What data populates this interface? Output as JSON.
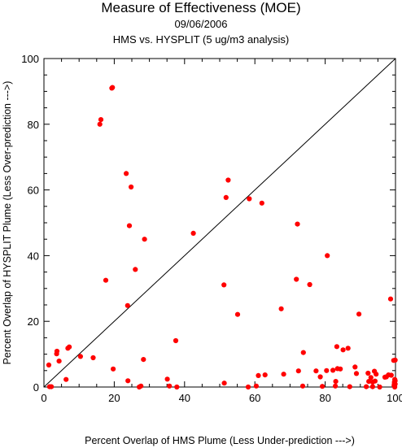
{
  "chart_data": {
    "type": "scatter",
    "title": "Measure of Effectiveness (MOE)",
    "subtitle_date": "09/06/2006",
    "subtitle_analysis": "HMS vs. HYSPLIT  (5 ug/m3 analysis)",
    "xlabel": "Percent Overlap of HMS Plume (Less Under-prediction --->)",
    "ylabel": "Percent Overlap of HYSPLIT Plume (Less Over-prediction --->)",
    "xlim": [
      0,
      100
    ],
    "ylim": [
      0,
      100
    ],
    "xticks": [
      0,
      20,
      40,
      60,
      80,
      100
    ],
    "yticks": [
      0,
      20,
      40,
      60,
      80,
      100
    ],
    "reference_line": "y = x (diagonal)",
    "marker_color": "#ff0000",
    "line_color": "#000000",
    "points": [
      [
        1.4,
        6.7
      ],
      [
        1.6,
        0.1
      ],
      [
        2.1,
        0.1
      ],
      [
        3.6,
        10.1
      ],
      [
        3.7,
        10.9
      ],
      [
        4.3,
        7.9
      ],
      [
        6.3,
        2.3
      ],
      [
        6.8,
        11.8
      ],
      [
        7.2,
        12.2
      ],
      [
        10.4,
        9.3
      ],
      [
        14.0,
        8.9
      ],
      [
        15.9,
        80.0
      ],
      [
        16.2,
        81.4
      ],
      [
        17.6,
        32.5
      ],
      [
        19.3,
        91.0
      ],
      [
        19.5,
        91.2
      ],
      [
        19.7,
        5.5
      ],
      [
        23.4,
        65.0
      ],
      [
        23.8,
        24.8
      ],
      [
        23.9,
        1.9
      ],
      [
        24.3,
        49.1
      ],
      [
        24.8,
        60.9
      ],
      [
        26.0,
        35.8
      ],
      [
        27.1,
        0.0
      ],
      [
        27.6,
        0.3
      ],
      [
        28.3,
        8.4
      ],
      [
        28.6,
        45.0
      ],
      [
        35.1,
        2.4
      ],
      [
        35.7,
        0.3
      ],
      [
        37.5,
        14.1
      ],
      [
        37.8,
        0.0
      ],
      [
        42.5,
        46.8
      ],
      [
        51.2,
        31.1
      ],
      [
        51.3,
        1.2
      ],
      [
        51.8,
        57.7
      ],
      [
        52.4,
        63.0
      ],
      [
        55.1,
        22.1
      ],
      [
        58.1,
        0.0
      ],
      [
        58.4,
        57.3
      ],
      [
        60.4,
        0.3
      ],
      [
        61.0,
        3.5
      ],
      [
        62.0,
        56.0
      ],
      [
        62.9,
        3.7
      ],
      [
        67.5,
        23.8
      ],
      [
        68.2,
        3.9
      ],
      [
        71.8,
        32.8
      ],
      [
        72.1,
        49.6
      ],
      [
        72.4,
        4.9
      ],
      [
        73.6,
        0.3
      ],
      [
        73.8,
        10.5
      ],
      [
        75.6,
        31.2
      ],
      [
        77.4,
        4.9
      ],
      [
        78.6,
        3.1
      ],
      [
        79.2,
        0.2
      ],
      [
        80.4,
        5.0
      ],
      [
        80.6,
        40.0
      ],
      [
        82.2,
        5.1
      ],
      [
        82.9,
        0.3
      ],
      [
        83.0,
        1.7
      ],
      [
        83.3,
        12.3
      ],
      [
        83.5,
        5.6
      ],
      [
        84.3,
        5.5
      ],
      [
        85.1,
        11.3
      ],
      [
        86.5,
        11.8
      ],
      [
        87.0,
        0.1
      ],
      [
        88.5,
        6.1
      ],
      [
        88.9,
        4.1
      ],
      [
        89.6,
        22.2
      ],
      [
        91.7,
        0.1
      ],
      [
        92.2,
        4.2
      ],
      [
        92.4,
        1.7
      ],
      [
        93.0,
        2.9
      ],
      [
        93.5,
        1.5
      ],
      [
        93.5,
        0.1
      ],
      [
        94.0,
        4.8
      ],
      [
        94.2,
        1.8
      ],
      [
        94.5,
        3.9
      ],
      [
        95.5,
        0.0
      ],
      [
        97.0,
        3.0
      ],
      [
        97.4,
        3.1
      ],
      [
        98.0,
        3.7
      ],
      [
        98.6,
        26.8
      ],
      [
        98.8,
        3.6
      ],
      [
        99.5,
        8.1
      ],
      [
        99.6,
        0.5
      ],
      [
        99.7,
        1.1
      ],
      [
        99.7,
        1.5
      ],
      [
        99.8,
        0.0
      ],
      [
        99.8,
        2.3
      ],
      [
        99.9,
        0.9
      ],
      [
        99.9,
        1.9
      ],
      [
        99.9,
        8.2
      ]
    ]
  }
}
